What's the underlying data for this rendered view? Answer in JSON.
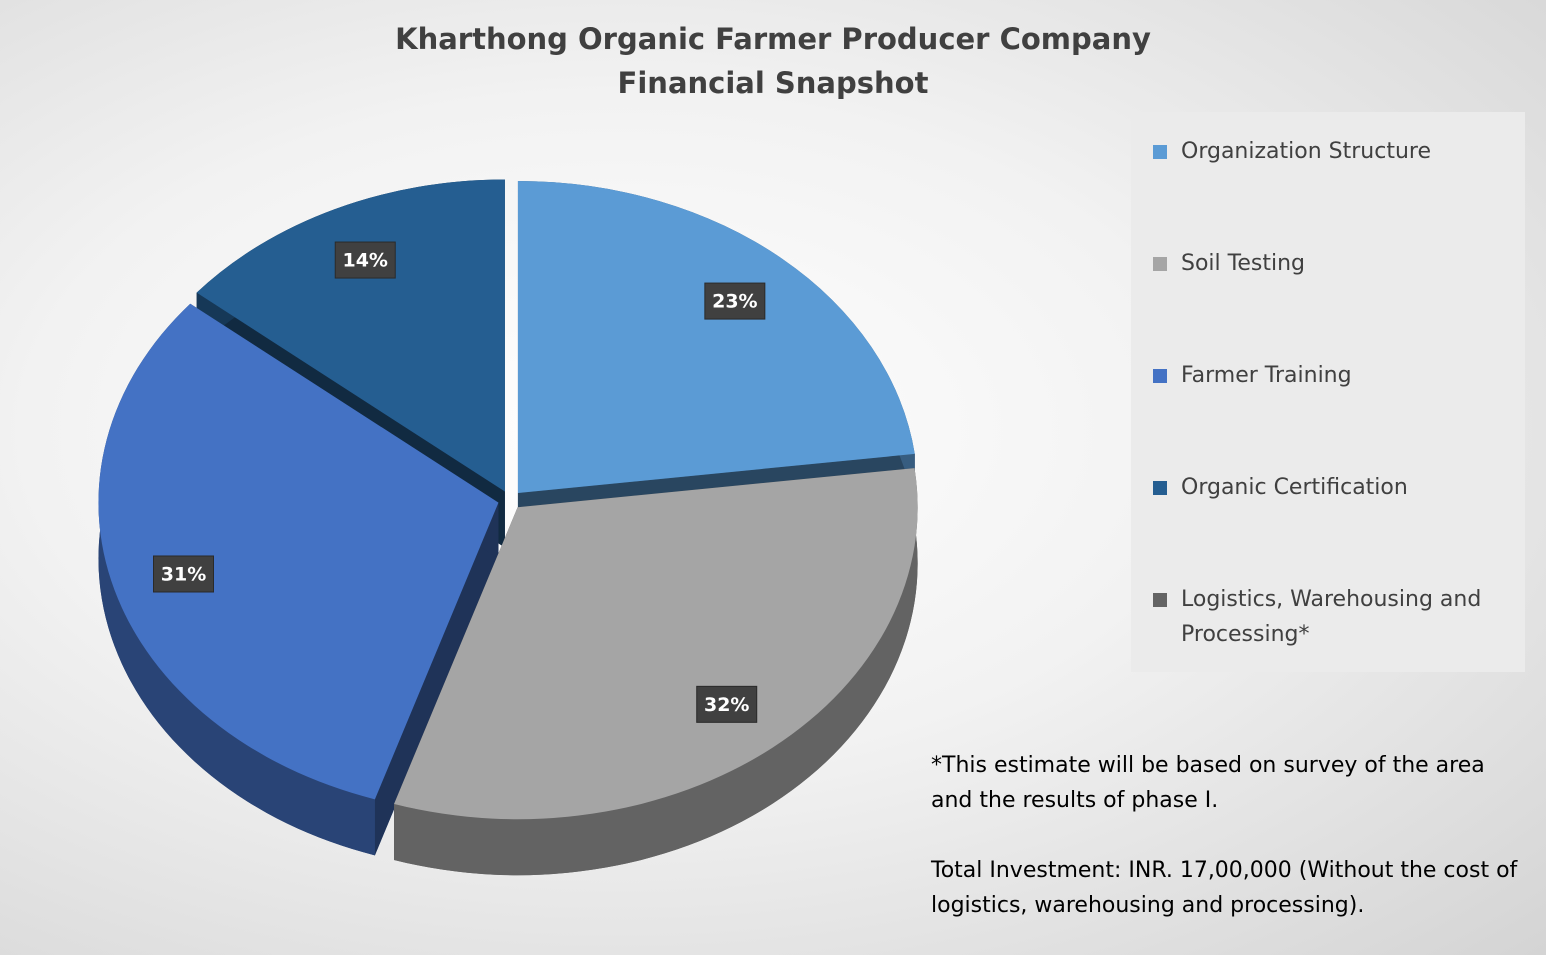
{
  "chart_data": {
    "type": "pie3d",
    "title": [
      "Kharthong Organic Farmer Producer Company",
      "Financial Snapshot"
    ],
    "categories": [
      "Organization Structure",
      "Soil Testing",
      "Farmer Training",
      "Organic Certification",
      "Logistics, Warehousing and Processing*"
    ],
    "values": [
      23,
      32,
      31,
      14,
      null
    ],
    "value_labels": [
      "23%",
      "32%",
      "31%",
      "14%",
      null
    ],
    "colors": [
      "#5b9bd5",
      "#a5a5a5",
      "#4472c4",
      "#255e91",
      "#636363"
    ],
    "legend": "right",
    "notes": [
      "*This estimate will be based on survey of the area and the results of phase I.",
      "Total Investment: INR. 17,00,000 (Without the cost of logistics, warehousing and processing)."
    ]
  }
}
